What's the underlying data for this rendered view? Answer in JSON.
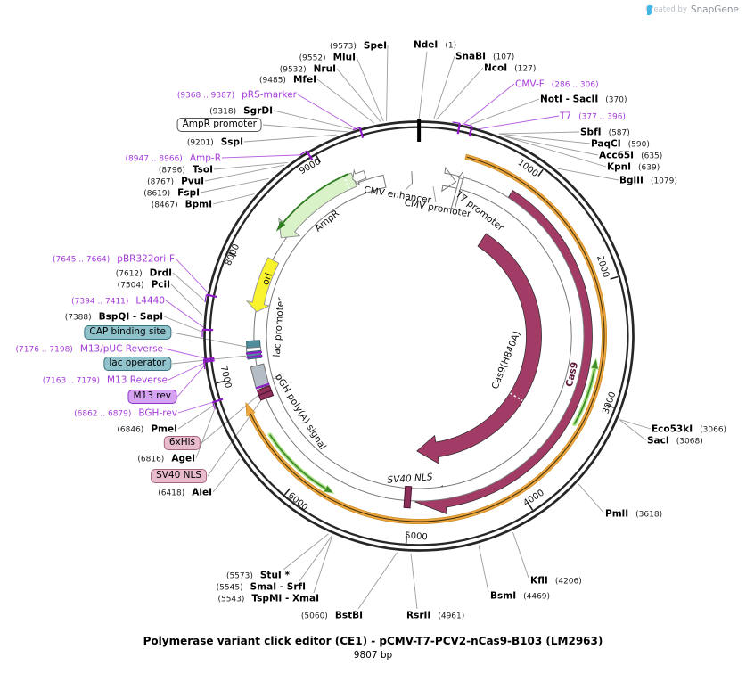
{
  "credit": {
    "prefix": "Created by",
    "brand": "SnapGene"
  },
  "title": "Polymerase variant click editor (CE1) - pCMV-T7-PCV2-nCas9-B103 (LM2963)",
  "size_label": "9807 bp",
  "ticks": [
    "1000",
    "2000",
    "3000",
    "4000",
    "5000",
    "6000",
    "7000",
    "8000",
    "9000"
  ],
  "sites": [
    {
      "name": "SpeI",
      "pos": "(9573)"
    },
    {
      "name": "MluI",
      "pos": "(9552)"
    },
    {
      "name": "NruI",
      "pos": "(9532)"
    },
    {
      "name": "MfeI",
      "pos": "(9485)"
    },
    {
      "name": "SgrDI",
      "pos": "(9318)"
    },
    {
      "name": "SspI",
      "pos": "(9201)"
    },
    {
      "name": "TsoI",
      "pos": "(8796)"
    },
    {
      "name": "PvuI",
      "pos": "(8767)"
    },
    {
      "name": "FspI",
      "pos": "(8619)"
    },
    {
      "name": "BpmI",
      "pos": "(8467)"
    },
    {
      "name": "NdeI",
      "pos": "(1)"
    },
    {
      "name": "SnaBI",
      "pos": "(107)"
    },
    {
      "name": "NcoI",
      "pos": "(127)"
    },
    {
      "name": "NotI - SacII",
      "pos": "(370)"
    },
    {
      "name": "SbfI",
      "pos": "(587)"
    },
    {
      "name": "PaqCI",
      "pos": "(590)"
    },
    {
      "name": "Acc65I",
      "pos": "(635)"
    },
    {
      "name": "KpnI",
      "pos": "(639)"
    },
    {
      "name": "BglII",
      "pos": "(1079)"
    },
    {
      "name": "Eco53kI",
      "pos": "(3066)"
    },
    {
      "name": "SacI",
      "pos": "(3068)"
    },
    {
      "name": "PmlI",
      "pos": "(3618)"
    },
    {
      "name": "KflI",
      "pos": "(4206)"
    },
    {
      "name": "BsmI",
      "pos": "(4469)"
    },
    {
      "name": "RsrII",
      "pos": "(4961)"
    },
    {
      "name": "BstBI",
      "pos": "(5060)"
    },
    {
      "name": "TspMI - XmaI",
      "pos": "(5543)"
    },
    {
      "name": "SmaI - SrfI",
      "pos": "(5545)"
    },
    {
      "name": "StuI *",
      "pos": "(5573)"
    },
    {
      "name": "AleI",
      "pos": "(6418)"
    },
    {
      "name": "AgeI",
      "pos": "(6816)"
    },
    {
      "name": "PmeI",
      "pos": "(6846)"
    },
    {
      "name": "BspQI - SapI",
      "pos": "(7388)"
    },
    {
      "name": "PciI",
      "pos": "(7504)"
    },
    {
      "name": "DrdI",
      "pos": "(7612)"
    }
  ],
  "primers": [
    {
      "name": "pRS-marker",
      "range": "(9368 .. 9387)"
    },
    {
      "name": "Amp-R",
      "range": "(8947 .. 8966)"
    },
    {
      "name": "CMV-F",
      "range": "(286 .. 306)"
    },
    {
      "name": "T7",
      "range": "(377 .. 396)"
    },
    {
      "name": "pBR322ori-F",
      "range": "(7645 .. 7664)"
    },
    {
      "name": "L4440",
      "range": "(7394 .. 7411)"
    },
    {
      "name": "M13/pUC Reverse",
      "range": "(7176 .. 7198)"
    },
    {
      "name": "M13 Reverse",
      "range": "(7163 .. 7179)"
    },
    {
      "name": "BGH-rev",
      "range": "(6862 .. 6879)"
    }
  ],
  "boxed_features": [
    {
      "label": "AmpR promoter",
      "style": "white"
    },
    {
      "label": "CAP binding site",
      "style": "teal"
    },
    {
      "label": "lac operator",
      "style": "teal"
    },
    {
      "label": "M13 rev",
      "style": "purple"
    },
    {
      "label": "6xHis",
      "style": "pink"
    },
    {
      "label": "SV40 NLS",
      "style": "pink"
    }
  ],
  "map_labels": {
    "cmv_enhancer": "CMV enhancer",
    "cmv_promoter": "CMV promoter",
    "t7_promoter": "T7 promoter",
    "ampr": "AmpR",
    "ori": "ori",
    "lac_promoter": "lac promoter",
    "bgh_polya": "bGH poly(A) signal",
    "cas9_h840a": "Cas9(H840A)",
    "cas9": "Cas9",
    "sv40_nls": "SV40 NLS"
  },
  "colors": {
    "primer_purple": "#a43bd9",
    "cas9_maroon": "#a23b66",
    "transcript_orange": "#eba43e",
    "orf_green": "#3c8a2b",
    "ampr_green": "#d9f2c7",
    "ori_yellow": "#f8f32c",
    "teal_box": "#8fc2cb",
    "pink_box": "#e9bccd",
    "ring_black": "#262626"
  }
}
